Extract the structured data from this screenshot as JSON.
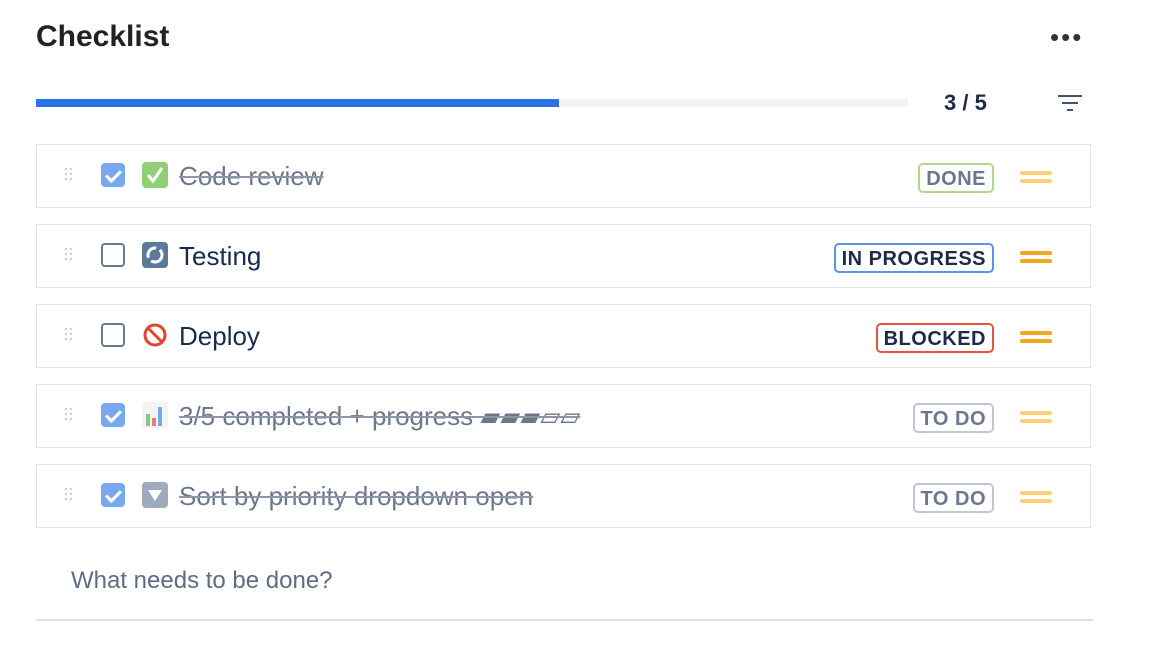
{
  "header": {
    "title": "Checklist",
    "more_icon": "more-horizontal-icon",
    "filter_icon": "filter-icon"
  },
  "progress": {
    "completed": 3,
    "total": 5,
    "percent": 60,
    "label": "3 / 5",
    "color": "#2b73e4"
  },
  "items": [
    {
      "label": "Code review",
      "emoji": "white-check-mark",
      "checked": true,
      "status": "DONE",
      "status_color": "#b5d58f",
      "priority": "medium"
    },
    {
      "label": "Testing",
      "emoji": "arrows-counterclockwise",
      "checked": false,
      "status": "IN PROGRESS",
      "status_color": "#5b93e8",
      "priority": "medium"
    },
    {
      "label": "Deploy",
      "emoji": "no-entry-sign",
      "checked": false,
      "status": "BLOCKED",
      "status_color": "#e5533d",
      "priority": "medium"
    },
    {
      "label": "3/5 completed + progress ▰▰▰▱▱",
      "emoji": "bar-chart",
      "checked": true,
      "status": "TO DO",
      "status_color": "#c1c7d0",
      "priority": "medium"
    },
    {
      "label": "Sort by priority dropdown open",
      "emoji": "arrow-down-small",
      "checked": true,
      "status": "TO DO",
      "status_color": "#c1c7d0",
      "priority": "medium"
    }
  ],
  "new_item": {
    "placeholder": "What needs to be done?",
    "value": ""
  }
}
